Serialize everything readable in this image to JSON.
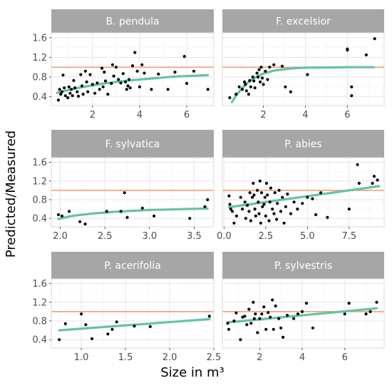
{
  "chart_data": {
    "type": "scatter",
    "xlabel": "Size in m³",
    "ylabel": "Predicted/Measured",
    "colors": {
      "points": "#000000",
      "reference_line": "#f4a582",
      "fit_line": "#66c2a5",
      "strip": "#a6a6a6",
      "grid_major": "#e6e6e6",
      "grid_minor": "#f3f3f3",
      "panel_border": "#d9d9d9"
    },
    "reference_y": 1.0,
    "grid": true,
    "layout": "3 rows x 2 columns, free x scales, shared y scale",
    "panels": [
      {
        "title": "B. pendula",
        "xlim": [
          0.25,
          7.15
        ],
        "ylim": [
          0.22,
          1.7
        ],
        "xticks": [
          2,
          4,
          6
        ],
        "xtick_labels": [
          "2",
          "4",
          "6"
        ],
        "yticks": [
          0.4,
          0.8,
          1.2,
          1.6
        ],
        "ytick_labels": [
          "0.4",
          "0.8",
          "1.2",
          "1.6"
        ],
        "fit_type": "saturating",
        "fit": [
          [
            0.5,
            0.48
          ],
          [
            1,
            0.54
          ],
          [
            1.5,
            0.59
          ],
          [
            2,
            0.63
          ],
          [
            2.5,
            0.67
          ],
          [
            3,
            0.7
          ],
          [
            3.5,
            0.73
          ],
          [
            4,
            0.75
          ],
          [
            4.5,
            0.77
          ],
          [
            5,
            0.79
          ],
          [
            5.5,
            0.81
          ],
          [
            6,
            0.82
          ],
          [
            6.5,
            0.83
          ],
          [
            6.9,
            0.84
          ]
        ],
        "points": [
          [
            0.55,
            0.33
          ],
          [
            0.6,
            0.55
          ],
          [
            0.65,
            0.45
          ],
          [
            0.7,
            0.5
          ],
          [
            0.75,
            0.84
          ],
          [
            0.8,
            0.58
          ],
          [
            0.85,
            0.42
          ],
          [
            0.95,
            0.38
          ],
          [
            1.0,
            0.6
          ],
          [
            1.05,
            0.47
          ],
          [
            1.1,
            0.55
          ],
          [
            1.15,
            0.42
          ],
          [
            1.2,
            0.73
          ],
          [
            1.25,
            0.58
          ],
          [
            1.35,
            0.5
          ],
          [
            1.4,
            0.41
          ],
          [
            1.5,
            0.85
          ],
          [
            1.55,
            0.62
          ],
          [
            1.6,
            0.45
          ],
          [
            1.7,
            0.92
          ],
          [
            1.75,
            0.7
          ],
          [
            1.8,
            0.5
          ],
          [
            1.9,
            0.85
          ],
          [
            2.0,
            0.65
          ],
          [
            2.1,
            0.47
          ],
          [
            2.2,
            0.68
          ],
          [
            2.3,
            0.55
          ],
          [
            2.4,
            0.98
          ],
          [
            2.45,
            0.6
          ],
          [
            2.5,
            0.9
          ],
          [
            2.55,
            0.72
          ],
          [
            2.65,
            0.45
          ],
          [
            2.8,
            0.67
          ],
          [
            2.85,
            1.05
          ],
          [
            2.9,
            0.82
          ],
          [
            3.0,
            1.0
          ],
          [
            3.1,
            0.75
          ],
          [
            3.2,
            0.68
          ],
          [
            3.3,
            0.87
          ],
          [
            3.4,
            0.7
          ],
          [
            3.45,
            0.55
          ],
          [
            3.5,
            0.62
          ],
          [
            3.55,
            0.75
          ],
          [
            3.6,
            0.58
          ],
          [
            3.7,
            1.03
          ],
          [
            3.8,
            1.3
          ],
          [
            3.9,
            0.92
          ],
          [
            4.0,
            0.6
          ],
          [
            4.1,
            1.05
          ],
          [
            4.2,
            0.88
          ],
          [
            4.5,
            0.55
          ],
          [
            4.8,
            0.86
          ],
          [
            5.2,
            0.55
          ],
          [
            5.5,
            0.9
          ],
          [
            5.9,
            1.22
          ],
          [
            6.0,
            0.67
          ],
          [
            6.3,
            0.92
          ],
          [
            6.9,
            0.55
          ]
        ]
      },
      {
        "title": "F. excelsior",
        "xlim": [
          0.05,
          7.75
        ],
        "ylim": [
          0.22,
          1.7
        ],
        "xticks": [
          2,
          4,
          6
        ],
        "xtick_labels": [
          "2",
          "4",
          "6"
        ],
        "yticks": [
          0.4,
          0.8,
          1.2,
          1.6
        ],
        "ytick_labels": [
          "0.4",
          "0.8",
          "1.2",
          "1.6"
        ],
        "fit_type": "saturating",
        "fit": [
          [
            0.5,
            0.29
          ],
          [
            0.75,
            0.45
          ],
          [
            1.0,
            0.58
          ],
          [
            1.25,
            0.68
          ],
          [
            1.5,
            0.76
          ],
          [
            1.75,
            0.82
          ],
          [
            2.0,
            0.87
          ],
          [
            2.5,
            0.93
          ],
          [
            3.0,
            0.96
          ],
          [
            3.5,
            0.98
          ],
          [
            4.0,
            0.99
          ],
          [
            5.0,
            0.995
          ],
          [
            6.0,
            1.0
          ],
          [
            7.25,
            1.0
          ]
        ],
        "points": [
          [
            0.4,
            0.38
          ],
          [
            0.7,
            0.45
          ],
          [
            0.85,
            0.6
          ],
          [
            1.0,
            0.55
          ],
          [
            1.1,
            0.7
          ],
          [
            1.15,
            0.65
          ],
          [
            1.2,
            0.52
          ],
          [
            1.3,
            0.45
          ],
          [
            1.35,
            0.73
          ],
          [
            1.4,
            0.6
          ],
          [
            1.5,
            0.8
          ],
          [
            1.55,
            0.72
          ],
          [
            1.6,
            0.58
          ],
          [
            1.7,
            0.88
          ],
          [
            1.75,
            0.8
          ],
          [
            1.8,
            0.95
          ],
          [
            1.85,
            0.7
          ],
          [
            1.9,
            1.0
          ],
          [
            1.95,
            0.78
          ],
          [
            2.0,
            0.65
          ],
          [
            2.1,
            0.92
          ],
          [
            2.2,
            0.75
          ],
          [
            2.3,
            1.0
          ],
          [
            2.5,
            1.05
          ],
          [
            2.9,
            1.02
          ],
          [
            3.05,
            0.6
          ],
          [
            3.3,
            0.5
          ],
          [
            4.1,
            0.85
          ],
          [
            6.0,
            1.37
          ],
          [
            6.0,
            1.35
          ],
          [
            6.2,
            0.42
          ],
          [
            6.2,
            0.6
          ],
          [
            6.9,
            1.25
          ],
          [
            7.3,
            1.58
          ]
        ]
      },
      {
        "title": "F. sylvatica",
        "xlim": [
          1.9,
          3.72
        ],
        "ylim": [
          0.22,
          1.7
        ],
        "xticks": [
          2.0,
          2.5,
          3.0,
          3.5
        ],
        "xtick_labels": [
          "2.0",
          "2.5",
          "3.0",
          "3.5"
        ],
        "yticks": [
          0.4,
          0.8,
          1.2,
          1.6
        ],
        "ytick_labels": [
          "0.4",
          "0.8",
          "1.2",
          "1.6"
        ],
        "fit_type": "saturating",
        "fit": [
          [
            1.98,
            0.39
          ],
          [
            2.1,
            0.44
          ],
          [
            2.2,
            0.47
          ],
          [
            2.4,
            0.51
          ],
          [
            2.6,
            0.54
          ],
          [
            2.8,
            0.56
          ],
          [
            3.0,
            0.58
          ],
          [
            3.2,
            0.59
          ],
          [
            3.4,
            0.6
          ],
          [
            3.65,
            0.61
          ]
        ],
        "points": [
          [
            1.98,
            0.48
          ],
          [
            2.02,
            0.45
          ],
          [
            2.1,
            0.55
          ],
          [
            2.22,
            0.33
          ],
          [
            2.28,
            0.28
          ],
          [
            2.52,
            0.55
          ],
          [
            2.68,
            0.55
          ],
          [
            2.72,
            0.95
          ],
          [
            2.75,
            0.42
          ],
          [
            2.92,
            0.62
          ],
          [
            3.05,
            0.45
          ],
          [
            3.45,
            0.4
          ],
          [
            3.62,
            0.65
          ],
          [
            3.65,
            0.8
          ]
        ]
      },
      {
        "title": "P. abies",
        "xlim": [
          -0.1,
          9.6
        ],
        "ylim": [
          0.22,
          1.7
        ],
        "xticks": [
          0.0,
          2.5,
          5.0,
          7.5
        ],
        "xtick_labels": [
          "0.0",
          "2.5",
          "5.0",
          "7.5"
        ],
        "yticks": [
          0.4,
          0.8,
          1.2,
          1.6
        ],
        "ytick_labels": [
          "0.4",
          "0.8",
          "1.2",
          "1.6"
        ],
        "fit_type": "linear",
        "fit": [
          [
            0.3,
            0.64
          ],
          [
            9.3,
            1.09
          ]
        ],
        "points": [
          [
            0.3,
            0.88
          ],
          [
            0.35,
            0.7
          ],
          [
            0.4,
            0.6
          ],
          [
            0.5,
            0.55
          ],
          [
            0.6,
            0.3
          ],
          [
            0.75,
            0.45
          ],
          [
            1.0,
            0.85
          ],
          [
            1.1,
            0.6
          ],
          [
            1.25,
            0.75
          ],
          [
            1.3,
            0.4
          ],
          [
            1.4,
            0.68
          ],
          [
            1.5,
            0.55
          ],
          [
            1.55,
            0.95
          ],
          [
            1.6,
            0.35
          ],
          [
            1.7,
            0.85
          ],
          [
            1.75,
            1.15
          ],
          [
            1.8,
            0.9
          ],
          [
            1.85,
            0.6
          ],
          [
            1.9,
            0.45
          ],
          [
            2.0,
            1.0
          ],
          [
            2.05,
            0.75
          ],
          [
            2.1,
            0.5
          ],
          [
            2.15,
            1.2
          ],
          [
            2.2,
            0.3
          ],
          [
            2.25,
            0.95
          ],
          [
            2.3,
            0.65
          ],
          [
            2.4,
            0.7
          ],
          [
            2.45,
            0.85
          ],
          [
            2.5,
            0.45
          ],
          [
            2.55,
            1.15
          ],
          [
            2.6,
            0.9
          ],
          [
            2.7,
            0.35
          ],
          [
            2.75,
            0.75
          ],
          [
            2.8,
            1.05
          ],
          [
            2.9,
            0.6
          ],
          [
            3.0,
            0.5
          ],
          [
            3.05,
            0.95
          ],
          [
            3.15,
            0.38
          ],
          [
            3.2,
            0.72
          ],
          [
            3.3,
            1.0
          ],
          [
            3.4,
            0.55
          ],
          [
            3.5,
            0.85
          ],
          [
            3.6,
            0.3
          ],
          [
            3.7,
            0.65
          ],
          [
            3.8,
            0.92
          ],
          [
            4.0,
            0.5
          ],
          [
            4.2,
            0.75
          ],
          [
            4.4,
            0.6
          ],
          [
            4.7,
            0.72
          ],
          [
            5.0,
            0.85
          ],
          [
            5.3,
            0.82
          ],
          [
            5.5,
            0.48
          ],
          [
            5.8,
            0.95
          ],
          [
            6.2,
            0.42
          ],
          [
            7.5,
            0.6
          ],
          [
            8.0,
            1.55
          ],
          [
            8.1,
            1.15
          ],
          [
            8.9,
            1.15
          ],
          [
            9.0,
            1.3
          ],
          [
            9.2,
            1.22
          ]
        ]
      },
      {
        "title": "P. acerifolia",
        "xlim": [
          0.66,
          2.5
        ],
        "ylim": [
          0.22,
          1.7
        ],
        "xticks": [
          1.0,
          1.5,
          2.0,
          2.5
        ],
        "xtick_labels": [
          "1.0",
          "1.5",
          "2.0",
          "2.5"
        ],
        "yticks": [
          0.4,
          0.8,
          1.2,
          1.6
        ],
        "ytick_labels": [
          "0.4",
          "0.8",
          "1.2",
          "1.6"
        ],
        "fit_type": "linear",
        "fit": [
          [
            0.75,
            0.6
          ],
          [
            2.45,
            0.84
          ]
        ],
        "points": [
          [
            0.75,
            0.4
          ],
          [
            0.82,
            0.74
          ],
          [
            1.0,
            0.95
          ],
          [
            1.05,
            0.72
          ],
          [
            1.12,
            0.42
          ],
          [
            1.3,
            0.52
          ],
          [
            1.35,
            0.62
          ],
          [
            1.4,
            0.78
          ],
          [
            1.6,
            0.69
          ],
          [
            1.78,
            0.68
          ],
          [
            2.45,
            0.9
          ]
        ]
      },
      {
        "title": "P. sylvestris",
        "xlim": [
          0.25,
          7.85
        ],
        "ylim": [
          0.22,
          1.7
        ],
        "xticks": [
          2,
          4,
          6
        ],
        "xtick_labels": [
          "2",
          "4",
          "6"
        ],
        "yticks": [
          0.4,
          0.8,
          1.2,
          1.6
        ],
        "ytick_labels": [
          "0.4",
          "0.8",
          "1.2",
          "1.6"
        ],
        "fit_type": "linear",
        "fit": [
          [
            0.5,
            0.77
          ],
          [
            7.5,
            1.07
          ]
        ],
        "points": [
          [
            0.5,
            0.75
          ],
          [
            0.55,
            0.62
          ],
          [
            0.8,
            0.8
          ],
          [
            0.9,
            0.97
          ],
          [
            1.1,
            0.4
          ],
          [
            1.2,
            0.88
          ],
          [
            1.3,
            0.9
          ],
          [
            1.4,
            0.72
          ],
          [
            1.5,
            1.05
          ],
          [
            1.6,
            0.75
          ],
          [
            1.7,
            1.2
          ],
          [
            1.75,
            0.85
          ],
          [
            1.8,
            0.95
          ],
          [
            1.9,
            0.55
          ],
          [
            2.0,
            0.85
          ],
          [
            2.1,
            0.95
          ],
          [
            2.2,
            1.1
          ],
          [
            2.3,
            0.62
          ],
          [
            2.4,
            0.98
          ],
          [
            2.5,
            0.88
          ],
          [
            2.6,
            1.25
          ],
          [
            2.65,
            0.62
          ],
          [
            2.75,
            1.12
          ],
          [
            2.9,
            0.85
          ],
          [
            3.0,
            0.65
          ],
          [
            3.1,
            0.45
          ],
          [
            3.3,
            0.92
          ],
          [
            3.6,
            0.85
          ],
          [
            3.8,
            0.95
          ],
          [
            4.0,
            1.0
          ],
          [
            4.2,
            1.18
          ],
          [
            4.5,
            0.65
          ],
          [
            6.0,
            0.95
          ],
          [
            6.2,
            1.18
          ],
          [
            7.0,
            0.95
          ],
          [
            7.2,
            1.0
          ],
          [
            7.5,
            1.2
          ]
        ]
      }
    ]
  }
}
